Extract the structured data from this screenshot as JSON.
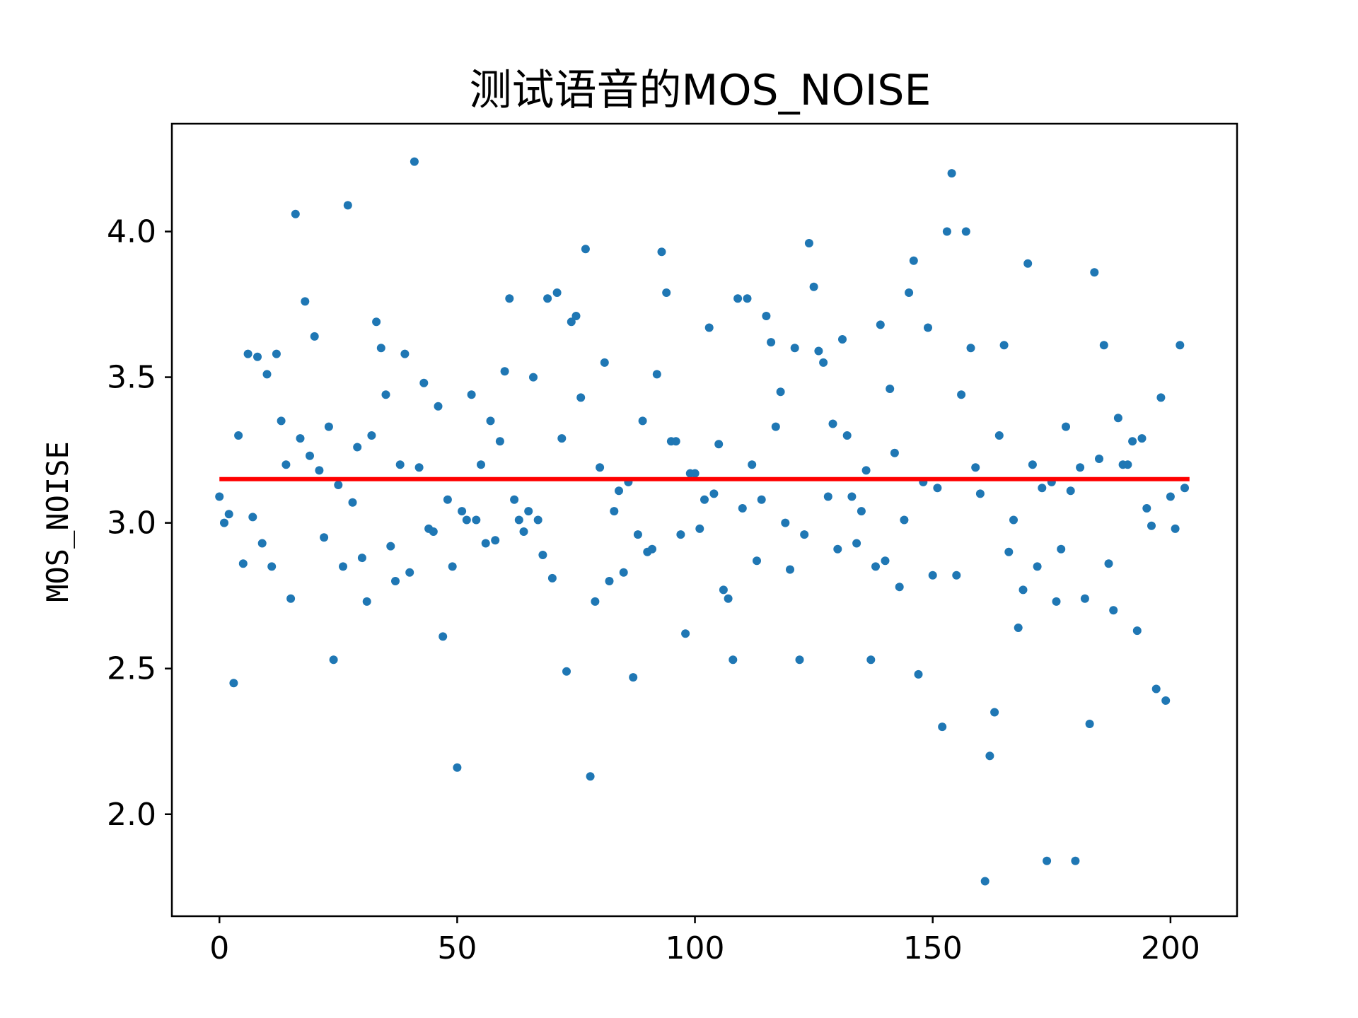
{
  "chart_data": {
    "type": "scatter",
    "title": "测试语音的MOS_NOISE",
    "xlabel": "",
    "ylabel": "MOS_NOISE",
    "xlim": [
      -10,
      214
    ],
    "ylim": [
      1.65,
      4.37
    ],
    "xticks": [
      0,
      50,
      100,
      150,
      200
    ],
    "yticks": [
      2.0,
      2.5,
      3.0,
      3.5,
      4.0
    ],
    "xtick_labels": [
      "0",
      "50",
      "100",
      "150",
      "200"
    ],
    "ytick_labels": [
      "2.0",
      "2.5",
      "3.0",
      "3.5",
      "4.0"
    ],
    "grid": false,
    "legend": "none",
    "colors": {
      "points": "#1f77b4",
      "mean_line": "#ff0000",
      "axes": "#000000"
    },
    "mean_line": {
      "y": 3.15,
      "x_start": 0,
      "x_end": 204
    },
    "series": [
      {
        "x": [
          0,
          1,
          2,
          3,
          4,
          5,
          6,
          7,
          8,
          9,
          10,
          11,
          12,
          13,
          14,
          15,
          16,
          17,
          18,
          19,
          20,
          21,
          22,
          23,
          24,
          25,
          26,
          27,
          28,
          29,
          30,
          31,
          32,
          33,
          34,
          35,
          36,
          37,
          38,
          39,
          40,
          41,
          42,
          43,
          44,
          45,
          46,
          47,
          48,
          49,
          50,
          51,
          52,
          53,
          54,
          55,
          56,
          57,
          58,
          59,
          60,
          61,
          62,
          63,
          64,
          65,
          66,
          67,
          68,
          69,
          70,
          71,
          72,
          73,
          74,
          75,
          76,
          77,
          78,
          79,
          80,
          81,
          82,
          83,
          84,
          85,
          86,
          87,
          88,
          89,
          90,
          91,
          92,
          93,
          94,
          95,
          96,
          97,
          98,
          99,
          100,
          101,
          102,
          103,
          104,
          105,
          106,
          107,
          108,
          109,
          110,
          111,
          112,
          113,
          114,
          115,
          116,
          117,
          118,
          119,
          120,
          121,
          122,
          123,
          124,
          125,
          126,
          127,
          128,
          129,
          130,
          131,
          132,
          133,
          134,
          135,
          136,
          137,
          138,
          139,
          140,
          141,
          142,
          143,
          144,
          145,
          146,
          147,
          148,
          149,
          150,
          151,
          152,
          153,
          154,
          155,
          156,
          157,
          158,
          159,
          160,
          161,
          162,
          163,
          164,
          165,
          166,
          167,
          168,
          169,
          170,
          171,
          172,
          173,
          174,
          175,
          176,
          177,
          178,
          179,
          180,
          181,
          182,
          183,
          184,
          185,
          186,
          187,
          188,
          189,
          190,
          191,
          192,
          193,
          194,
          195,
          196,
          197,
          198,
          199,
          200,
          201,
          202,
          203
        ],
        "y": [
          3.09,
          3.0,
          3.03,
          2.45,
          3.3,
          2.86,
          3.58,
          3.02,
          3.57,
          2.93,
          3.51,
          2.85,
          3.58,
          3.35,
          3.2,
          2.74,
          4.06,
          3.29,
          3.76,
          3.23,
          3.64,
          3.18,
          2.95,
          3.33,
          2.53,
          3.13,
          2.85,
          4.09,
          3.07,
          3.26,
          2.88,
          2.73,
          3.3,
          3.69,
          3.6,
          3.44,
          2.92,
          2.8,
          3.2,
          3.58,
          2.83,
          4.24,
          3.19,
          3.48,
          2.98,
          2.97,
          3.4,
          2.61,
          3.08,
          2.85,
          2.16,
          3.04,
          3.01,
          3.44,
          3.01,
          3.2,
          2.93,
          3.35,
          2.94,
          3.28,
          3.52,
          3.77,
          3.08,
          3.01,
          2.97,
          3.04,
          3.5,
          3.01,
          2.89,
          3.77,
          2.81,
          3.79,
          3.29,
          2.49,
          3.69,
          3.71,
          3.43,
          3.94,
          2.13,
          2.73,
          3.19,
          3.55,
          2.8,
          3.04,
          3.11,
          2.83,
          3.14,
          2.47,
          2.96,
          3.35,
          2.9,
          2.91,
          3.51,
          3.93,
          3.79,
          3.28,
          3.28,
          2.96,
          2.62,
          3.17,
          3.17,
          2.98,
          3.08,
          3.67,
          3.1,
          3.27,
          2.77,
          2.74,
          2.53,
          3.77,
          3.05,
          3.77,
          3.2,
          2.87,
          3.08,
          3.71,
          3.62,
          3.33,
          3.45,
          3.0,
          2.84,
          3.6,
          2.53,
          2.96,
          3.96,
          3.81,
          3.59,
          3.55,
          3.09,
          3.34,
          2.91,
          3.63,
          3.3,
          3.09,
          2.93,
          3.04,
          3.18,
          2.53,
          2.85,
          3.68,
          2.87,
          3.46,
          3.24,
          2.78,
          3.01,
          3.79,
          3.9,
          2.48,
          3.14,
          3.67,
          2.82,
          3.12,
          2.3,
          4.0,
          4.2,
          2.82,
          3.44,
          4.0,
          3.6,
          3.19,
          3.1,
          1.77,
          2.2,
          2.35,
          3.3,
          3.61,
          2.9,
          3.01,
          2.64,
          2.77,
          3.89,
          3.2,
          2.85,
          3.12,
          1.84,
          3.14,
          2.73,
          2.91,
          3.33,
          3.11,
          1.84,
          3.19,
          2.74,
          2.31,
          3.86,
          3.22,
          3.61,
          2.86,
          2.7,
          3.36,
          3.2,
          3.2,
          3.28,
          2.63,
          3.29,
          3.05,
          2.99,
          2.43,
          3.43,
          2.39,
          3.09,
          2.98,
          3.61,
          3.12
        ]
      }
    ]
  }
}
